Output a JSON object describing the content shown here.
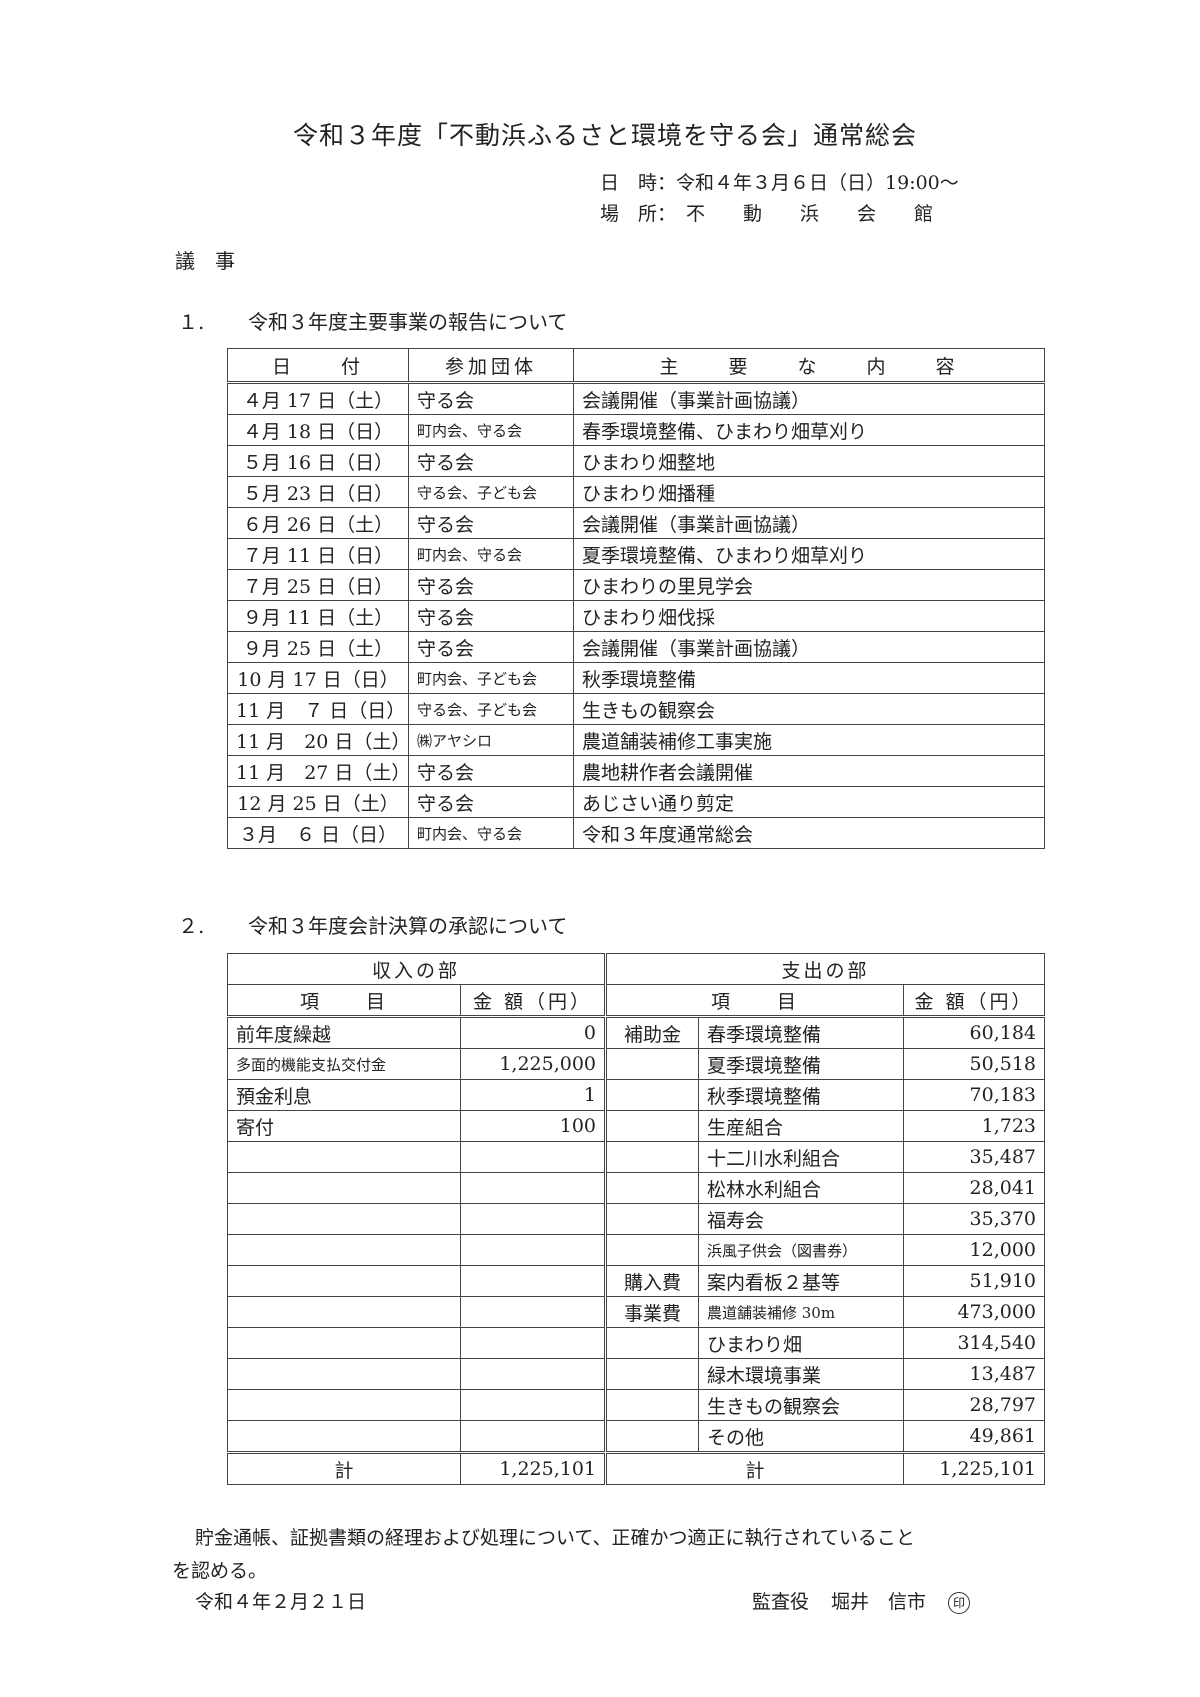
{
  "title": "令和３年度「不動浜ふるさと環境を守る会」通常総会",
  "meta": {
    "datetime_label": "日　時：",
    "datetime_value": "令和４年３月６日（日）19:00～",
    "place_label": "場　所：",
    "place_value": "不　　動　　浜　　会　　館"
  },
  "agenda_heading": "議事",
  "section1": {
    "number": "１.",
    "title": "令和３年度主要事業の報告について",
    "headers": [
      "日　　付",
      "参加団体",
      "主　　要　　な　　内　　容"
    ],
    "rows": [
      {
        "date": "４月 17 日（土）",
        "group": "守る会",
        "content": "会議開催（事業計画協議）"
      },
      {
        "date": "４月 18 日（日）",
        "group": "町内会、守る会",
        "content": "春季環境整備、ひまわり畑草刈り"
      },
      {
        "date": "５月 16 日（日）",
        "group": "守る会",
        "content": "ひまわり畑整地"
      },
      {
        "date": "５月 23 日（日）",
        "group": "守る会、子ども会",
        "content": "ひまわり畑播種"
      },
      {
        "date": "６月 26 日（土）",
        "group": "守る会",
        "content": "会議開催（事業計画協議）"
      },
      {
        "date": "７月 11 日（日）",
        "group": "町内会、守る会",
        "content": "夏季環境整備、ひまわり畑草刈り"
      },
      {
        "date": "７月 25 日（日）",
        "group": "守る会",
        "content": "ひまわりの里見学会"
      },
      {
        "date": "９月 11 日（土）",
        "group": "守る会",
        "content": "ひまわり畑伐採"
      },
      {
        "date": "９月 25 日（土）",
        "group": "守る会",
        "content": "会議開催（事業計画協議）"
      },
      {
        "date": "10 月 17 日（日）",
        "group": "町内会、子ども会",
        "content": "秋季環境整備"
      },
      {
        "date": "11 月　７ 日（日）",
        "group": "守る会、子ども会",
        "content": "生きもの観察会"
      },
      {
        "date": "11 月　20 日（土）",
        "group": "㈱アヤシロ",
        "content": "農道舗装補修工事実施"
      },
      {
        "date": "11 月　27 日（土）",
        "group": "守る会",
        "content": "農地耕作者会議開催"
      },
      {
        "date": "12 月 25 日（土）",
        "group": "守る会",
        "content": "あじさい通り剪定"
      },
      {
        "date": "３月　６ 日（日）",
        "group": "町内会、守る会",
        "content": "令和３年度通常総会"
      }
    ]
  },
  "section2": {
    "number": "２.",
    "title": "令和３年度会計決算の承認について",
    "income": {
      "heading": "収入の部",
      "headers": [
        "項　　目",
        "金 額（円）"
      ],
      "rows": [
        {
          "item": "前年度繰越",
          "amount": "0"
        },
        {
          "item": "多面的機能支払交付金",
          "amount": "1,225,000"
        },
        {
          "item": "預金利息",
          "amount": "1"
        },
        {
          "item": "寄付",
          "amount": "100"
        },
        {
          "item": "",
          "amount": ""
        },
        {
          "item": "",
          "amount": ""
        },
        {
          "item": "",
          "amount": ""
        },
        {
          "item": "",
          "amount": ""
        },
        {
          "item": "",
          "amount": ""
        },
        {
          "item": "",
          "amount": ""
        },
        {
          "item": "",
          "amount": ""
        },
        {
          "item": "",
          "amount": ""
        },
        {
          "item": "",
          "amount": ""
        },
        {
          "item": "",
          "amount": ""
        }
      ],
      "total_label": "計",
      "total": "1,225,101"
    },
    "expense": {
      "heading": "支出の部",
      "headers": [
        "項　　目",
        "金 額（円）"
      ],
      "rows": [
        {
          "category": "補助金",
          "item": "春季環境整備",
          "amount": "60,184"
        },
        {
          "category": "",
          "item": "夏季環境整備",
          "amount": "50,518"
        },
        {
          "category": "",
          "item": "秋季環境整備",
          "amount": "70,183"
        },
        {
          "category": "",
          "item": "生産組合",
          "amount": "1,723"
        },
        {
          "category": "",
          "item": "十二川水利組合",
          "amount": "35,487"
        },
        {
          "category": "",
          "item": "松林水利組合",
          "amount": "28,041"
        },
        {
          "category": "",
          "item": "福寿会",
          "amount": "35,370"
        },
        {
          "category": "",
          "item": "浜風子供会（図書券）",
          "amount": "12,000"
        },
        {
          "category": "購入費",
          "item": "案内看板２基等",
          "amount": "51,910"
        },
        {
          "category": "事業費",
          "item": "農道舗装補修 30m",
          "amount": "473,000"
        },
        {
          "category": "",
          "item": "ひまわり畑",
          "amount": "314,540"
        },
        {
          "category": "",
          "item": "緑木環境事業",
          "amount": "13,487"
        },
        {
          "category": "",
          "item": "生きもの観察会",
          "amount": "28,797"
        },
        {
          "category": "",
          "item": "その他",
          "amount": "49,861"
        }
      ],
      "total_label": "計",
      "total": "1,225,101"
    }
  },
  "audit": {
    "statement_line1": "貯金通帳、証拠書類の経理および処理について、正確かつ適正に執行されていること",
    "statement_line2": "を認める。",
    "date": "令和４年２月２１日",
    "role": "監査役",
    "name": "堀井　信市",
    "seal": "印"
  }
}
